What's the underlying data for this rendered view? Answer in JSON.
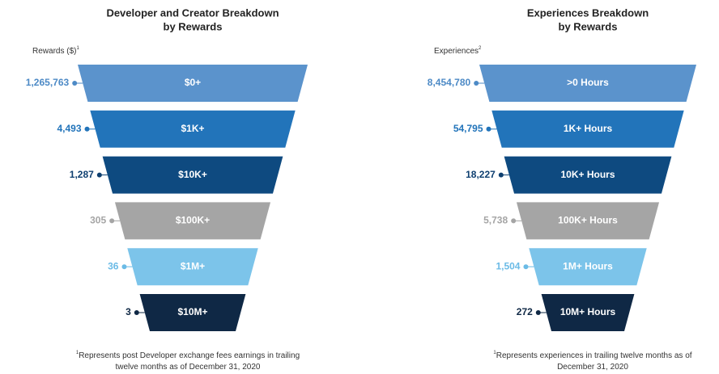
{
  "chart_data": [
    {
      "type": "funnel",
      "title": [
        "Developer and Creator Breakdown",
        "by Rewards"
      ],
      "axis_label": "Rewards ($)",
      "footnote_marker": "1",
      "categories": [
        "$0+",
        "$1K+",
        "$10K+",
        "$100K+",
        "$1M+",
        "$10M+"
      ],
      "values": [
        1265763,
        4493,
        1287,
        305,
        36,
        3
      ],
      "value_labels": [
        "1,265,763",
        "4,493",
        "1,287",
        "305",
        "36",
        "3"
      ],
      "colors": [
        "#5b93cc",
        "#2274ba",
        "#0e4a80",
        "#a5a5a5",
        "#7cc4ea",
        "#0f2845"
      ],
      "label_colors": [
        "#4d8ac6",
        "#2274ba",
        "#0e3f70",
        "#a5a5a5",
        "#6bbbe6",
        "#0f2845"
      ],
      "footnote": [
        "Represents post Developer exchange fees earnings in trailing",
        "twelve months as of December 31, 2020"
      ]
    },
    {
      "type": "funnel",
      "title": [
        "Experiences Breakdown",
        "by Rewards"
      ],
      "axis_label": "Experiences",
      "footnote_marker": "2",
      "categories": [
        ">0 Hours",
        "1K+ Hours",
        "10K+ Hours",
        "100K+ Hours",
        "1M+ Hours",
        "10M+ Hours"
      ],
      "values": [
        8454780,
        54795,
        18227,
        5738,
        1504,
        272
      ],
      "value_labels": [
        "8,454,780",
        "54,795",
        "18,227",
        "5,738",
        "1,504",
        "272"
      ],
      "colors": [
        "#5b93cc",
        "#2274ba",
        "#0e4a80",
        "#a5a5a5",
        "#7cc4ea",
        "#0f2845"
      ],
      "label_colors": [
        "#4d8ac6",
        "#2274ba",
        "#0e3f70",
        "#a5a5a5",
        "#6bbbe6",
        "#0f2845"
      ],
      "footnote_note": "1",
      "footnote": [
        "Represents experiences in trailing twelve months as of",
        "December 31, 2020"
      ]
    }
  ]
}
